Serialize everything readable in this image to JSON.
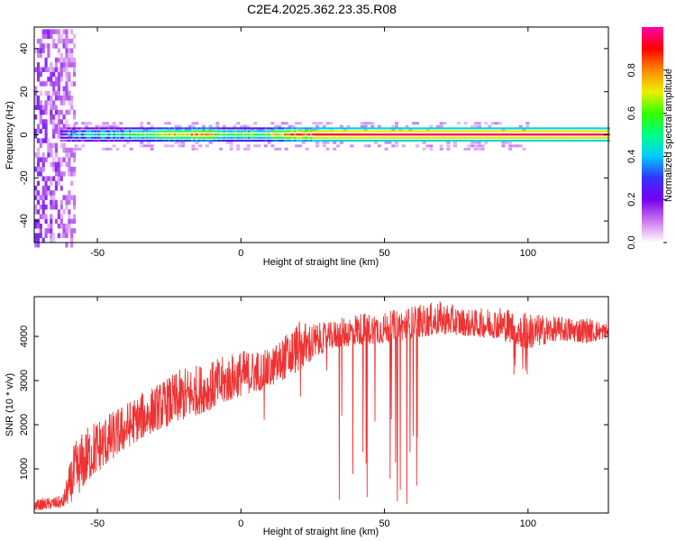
{
  "title": "C2E4.2025.362.23.35.R08",
  "chart_data": [
    {
      "type": "heatmap",
      "name": "spectrogram",
      "xlabel": "Height of straight line (km)",
      "ylabel": "Frequency (Hz)",
      "xlim": [
        -72,
        128
      ],
      "ylim": [
        -50,
        50
      ],
      "xticks": [
        -50,
        0,
        50,
        100
      ],
      "xtick_labels": [
        "-50",
        "0",
        "50",
        "100"
      ],
      "yticks": [
        -40,
        -20,
        0,
        20,
        40
      ],
      "ytick_labels": [
        "-40",
        "-20",
        "0",
        "20",
        "40"
      ],
      "colorbar": {
        "label": "Normalized spectral amplitude",
        "range": [
          0,
          1
        ],
        "ticks": [
          0.0,
          0.2,
          0.4,
          0.6,
          0.8
        ],
        "tick_labels": [
          "0.0",
          "0.2",
          "0.4",
          "0.6",
          "0.8"
        ],
        "colors": [
          "#ffffff",
          "#cc77ee",
          "#7700ee",
          "#3333ff",
          "#00ccff",
          "#00ff88",
          "#33ff00",
          "#eeee00",
          "#ff8800",
          "#ff0000",
          "#ff00aa"
        ]
      },
      "description_points": {
        "noise_region_x": [
          -72,
          -58
        ],
        "signal_band_center_hz": 0,
        "signal_band_halfwidth_hz": 1.5,
        "signal_intensity_profile": [
          {
            "x": -63,
            "amp": 0.35
          },
          {
            "x": -55,
            "amp": 0.4
          },
          {
            "x": -45,
            "amp": 0.45
          },
          {
            "x": -35,
            "amp": 0.55
          },
          {
            "x": -25,
            "amp": 0.7
          },
          {
            "x": -15,
            "amp": 0.8
          },
          {
            "x": -5,
            "amp": 0.6
          },
          {
            "x": 5,
            "amp": 0.55
          },
          {
            "x": 15,
            "amp": 0.75
          },
          {
            "x": 25,
            "amp": 0.9
          },
          {
            "x": 50,
            "amp": 0.95
          },
          {
            "x": 100,
            "amp": 0.95
          },
          {
            "x": 128,
            "amp": 0.95
          }
        ]
      }
    },
    {
      "type": "line",
      "name": "snr",
      "xlabel": "Height of straight line (km)",
      "ylabel": "SNR (10 * v/v)",
      "xlim": [
        -72,
        128
      ],
      "ylim": [
        0,
        4900
      ],
      "xticks": [
        -50,
        0,
        50,
        100
      ],
      "xtick_labels": [
        "-50",
        "0",
        "50",
        "100"
      ],
      "yticks": [
        1000,
        2000,
        3000,
        4000
      ],
      "ytick_labels": [
        "1000",
        "2000",
        "3000",
        "4000"
      ],
      "color": "#ee3333",
      "envelope": {
        "x": [
          -72,
          -62,
          -58,
          -52,
          -45,
          -38,
          -30,
          -20,
          -10,
          0,
          10,
          20,
          30,
          40,
          50,
          60,
          70,
          80,
          90,
          100,
          110,
          120,
          128
        ],
        "base": [
          60,
          120,
          300,
          800,
          1200,
          1550,
          1850,
          2100,
          2350,
          2650,
          2850,
          3200,
          3700,
          3800,
          3850,
          3950,
          4050,
          4000,
          3950,
          3700,
          3900,
          3850,
          3950
        ],
        "peak": [
          300,
          400,
          1600,
          2100,
          2300,
          2600,
          2900,
          3300,
          3450,
          3700,
          3700,
          4350,
          4300,
          4550,
          4550,
          4700,
          4800,
          4600,
          4700,
          4550,
          4450,
          4450,
          4300
        ]
      }
    }
  ]
}
